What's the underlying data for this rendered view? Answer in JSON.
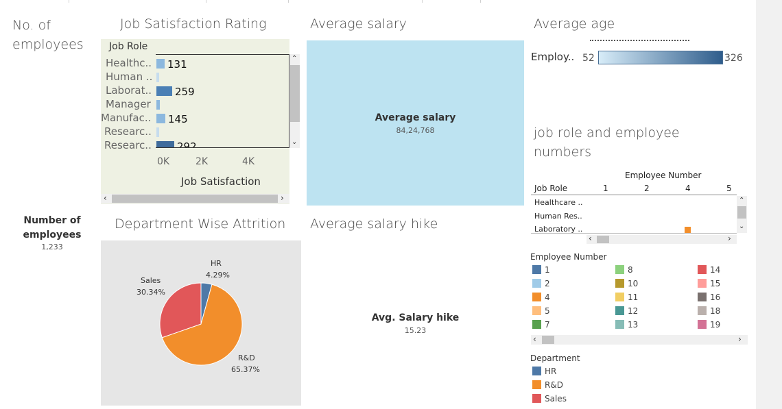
{
  "colors": {
    "hr": "#4e79a7",
    "rd": "#f28e2b",
    "sales": "#e15759",
    "salary_bg": "#bde3f1",
    "job_bg": "#eef1e3",
    "attr_bg": "#e6e6e6"
  },
  "titles": {
    "no_employees": "No. of employees",
    "job_satisfaction": "Job Satisfaction Rating",
    "avg_salary": "Average salary",
    "avg_age": "Average age",
    "job_role_emp": "job role and employee numbers",
    "dept_attrition": "Department Wise Attrition",
    "avg_salary_hike": "Average salary hike"
  },
  "kpis": {
    "num_emp_label": "Number of employees",
    "num_emp_value": "1,233",
    "avg_salary_label": "Average salary",
    "avg_salary_value": "84,24,768",
    "avg_hike_label": "Avg. Salary hike",
    "avg_hike_value": "15.23"
  },
  "job_satisfaction": {
    "header": "Job Role",
    "axis_label": "Job Satisfaction",
    "ticks": [
      "0K",
      "2K",
      "4K"
    ],
    "rows": [
      {
        "label": "Healthc..",
        "value": 131,
        "display": "131",
        "color": "#8cb8de"
      },
      {
        "label": "Human ..",
        "value": 20,
        "display": "",
        "color": "#c6dcee"
      },
      {
        "label": "Laborat..",
        "value": 259,
        "display": "259",
        "color": "#4a7fb5"
      },
      {
        "label": "Manager",
        "value": 60,
        "display": "",
        "color": "#8cb8de"
      },
      {
        "label": "Manufac..",
        "value": 145,
        "display": "145",
        "color": "#8cb8de"
      },
      {
        "label": "Researc..",
        "value": 50,
        "display": "",
        "color": "#c6dcee"
      },
      {
        "label": "Researc..",
        "value": 292,
        "display": "292",
        "color": "#3f6c9c"
      }
    ]
  },
  "avg_age": {
    "label": "Employ..",
    "min": "52",
    "max": "326"
  },
  "job_role_table": {
    "col_header": "Employee Number",
    "row_header": "Job Role",
    "cols": [
      "1",
      "2",
      "4",
      "5"
    ],
    "rows": [
      "Healthcare ..",
      "Human Res..",
      "Laboratory .."
    ]
  },
  "emp_legend": {
    "title": "Employee Number",
    "items": [
      {
        "label": "1",
        "color": "#4e79a7"
      },
      {
        "label": "2",
        "color": "#a0cbe8"
      },
      {
        "label": "4",
        "color": "#f28e2b"
      },
      {
        "label": "5",
        "color": "#ffbe7d"
      },
      {
        "label": "7",
        "color": "#59a14f"
      },
      {
        "label": "8",
        "color": "#8cd17d"
      },
      {
        "label": "10",
        "color": "#b6992d"
      },
      {
        "label": "11",
        "color": "#f1ce63"
      },
      {
        "label": "12",
        "color": "#499894"
      },
      {
        "label": "13",
        "color": "#86bcb6"
      },
      {
        "label": "14",
        "color": "#e15759"
      },
      {
        "label": "15",
        "color": "#ff9d9a"
      },
      {
        "label": "16",
        "color": "#79706e"
      },
      {
        "label": "18",
        "color": "#bab0ac"
      },
      {
        "label": "19",
        "color": "#d37295"
      }
    ]
  },
  "dept_legend": {
    "title": "Department",
    "items": [
      {
        "label": "HR",
        "color": "#4e79a7"
      },
      {
        "label": "R&D",
        "color": "#f28e2b"
      },
      {
        "label": "Sales",
        "color": "#e15759"
      }
    ]
  },
  "attrition": {
    "slices": [
      {
        "name": "HR",
        "pct": "4.29%",
        "value": 4.29,
        "color": "#4e79a7"
      },
      {
        "name": "R&D",
        "pct": "65.37%",
        "value": 65.37,
        "color": "#f28e2b"
      },
      {
        "name": "Sales",
        "pct": "30.34%",
        "value": 30.34,
        "color": "#e15759"
      }
    ]
  }
}
